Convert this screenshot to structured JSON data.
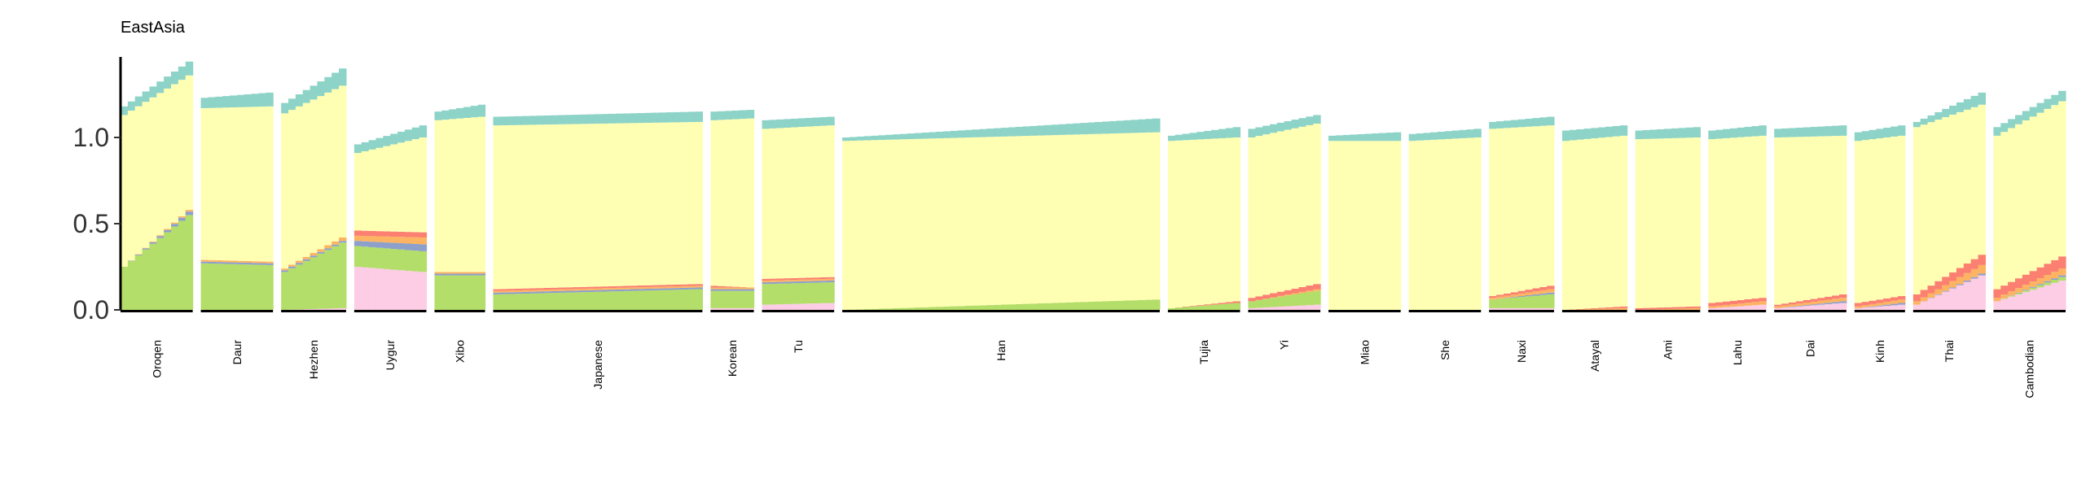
{
  "chart_data": {
    "type": "bar",
    "subtype": "stacked-admixture",
    "title": "EastAsia",
    "xlabel": "",
    "ylabel": "",
    "ylim": [
      0,
      1.5
    ],
    "yticks": [
      0.0,
      0.5,
      1.0
    ],
    "ytick_labels": [
      "0.0",
      "0.5",
      "1.0"
    ],
    "grid": false,
    "legend": "none",
    "components": [
      {
        "id": "c1",
        "color": "#fccde5"
      },
      {
        "id": "c2",
        "color": "#b3de69"
      },
      {
        "id": "c3",
        "color": "#8da0cb"
      },
      {
        "id": "c4",
        "color": "#fdb462"
      },
      {
        "id": "c5",
        "color": "#fb8072"
      },
      {
        "id": "c6",
        "color": "#ffffb3"
      },
      {
        "id": "c7",
        "color": "#8dd3c7"
      }
    ],
    "groups": [
      {
        "name": "Oroqen",
        "n": 10,
        "start": [
          0,
          0.25,
          0,
          0,
          0,
          0.88,
          0.05
        ],
        "end": [
          0,
          0.55,
          0.02,
          0.01,
          0,
          0.78,
          0.08
        ]
      },
      {
        "name": "Daur",
        "n": 10,
        "start": [
          0,
          0.27,
          0.01,
          0.01,
          0,
          0.88,
          0.06
        ],
        "end": [
          0,
          0.26,
          0.01,
          0.01,
          0,
          0.9,
          0.08
        ]
      },
      {
        "name": "Hezhen",
        "n": 9,
        "start": [
          0,
          0.22,
          0.01,
          0.01,
          0,
          0.9,
          0.06
        ],
        "end": [
          0.01,
          0.38,
          0.01,
          0.02,
          0,
          0.88,
          0.1
        ]
      },
      {
        "name": "Uygur",
        "n": 10,
        "start": [
          0.25,
          0.12,
          0.03,
          0.03,
          0.03,
          0.45,
          0.05
        ],
        "end": [
          0.22,
          0.12,
          0.04,
          0.04,
          0.03,
          0.55,
          0.07
        ]
      },
      {
        "name": "Xibo",
        "n": 7,
        "start": [
          0,
          0.2,
          0.01,
          0.01,
          0,
          0.88,
          0.05
        ],
        "end": [
          0,
          0.2,
          0.01,
          0.01,
          0,
          0.9,
          0.07
        ]
      },
      {
        "name": "Japanese",
        "n": 29,
        "start": [
          0,
          0.09,
          0.01,
          0.01,
          0.01,
          0.95,
          0.05
        ],
        "end": [
          0,
          0.12,
          0.01,
          0.01,
          0.01,
          0.94,
          0.06
        ]
      },
      {
        "name": "Korean",
        "n": 6,
        "start": [
          0.01,
          0.1,
          0.01,
          0.01,
          0.01,
          0.96,
          0.05
        ],
        "end": [
          0.01,
          0.1,
          0.01,
          0.01,
          0,
          0.98,
          0.05
        ]
      },
      {
        "name": "Tu",
        "n": 10,
        "start": [
          0.03,
          0.12,
          0.01,
          0.01,
          0.01,
          0.87,
          0.05
        ],
        "end": [
          0.04,
          0.12,
          0.01,
          0.01,
          0.01,
          0.88,
          0.05
        ]
      },
      {
        "name": "Han",
        "n": 44,
        "start": [
          0,
          0.0,
          0,
          0,
          0,
          0.98,
          0.02
        ],
        "end": [
          0,
          0.06,
          0,
          0,
          0,
          0.97,
          0.08
        ]
      },
      {
        "name": "Tujia",
        "n": 10,
        "start": [
          0,
          0.01,
          0,
          0,
          0,
          0.97,
          0.03
        ],
        "end": [
          0,
          0.04,
          0,
          0,
          0.01,
          0.95,
          0.06
        ]
      },
      {
        "name": "Yi",
        "n": 10,
        "start": [
          0.01,
          0.04,
          0,
          0,
          0.02,
          0.93,
          0.05
        ],
        "end": [
          0.03,
          0.08,
          0,
          0.01,
          0.03,
          0.93,
          0.05
        ]
      },
      {
        "name": "Miao",
        "n": 10,
        "start": [
          0,
          0,
          0,
          0,
          0,
          0.98,
          0.03
        ],
        "end": [
          0,
          0,
          0,
          0,
          0,
          0.98,
          0.05
        ]
      },
      {
        "name": "She",
        "n": 10,
        "start": [
          0,
          0,
          0,
          0,
          0,
          0.98,
          0.04
        ],
        "end": [
          0,
          0,
          0,
          0,
          0,
          1.0,
          0.05
        ]
      },
      {
        "name": "Naxi",
        "n": 9,
        "start": [
          0.01,
          0.05,
          0,
          0.01,
          0.01,
          0.97,
          0.04
        ],
        "end": [
          0.01,
          0.08,
          0.01,
          0.02,
          0.02,
          0.93,
          0.05
        ]
      },
      {
        "name": "Atayal",
        "n": 9,
        "start": [
          0,
          0,
          0,
          0,
          0,
          0.98,
          0.06
        ],
        "end": [
          0,
          0,
          0,
          0.01,
          0.01,
          0.99,
          0.06
        ]
      },
      {
        "name": "Ami",
        "n": 9,
        "start": [
          0,
          0,
          0,
          0,
          0.01,
          0.98,
          0.05
        ],
        "end": [
          0,
          0,
          0,
          0.01,
          0.01,
          0.98,
          0.06
        ]
      },
      {
        "name": "Lahu",
        "n": 8,
        "start": [
          0.01,
          0,
          0,
          0.01,
          0.02,
          0.95,
          0.05
        ],
        "end": [
          0.03,
          0,
          0,
          0.02,
          0.02,
          0.94,
          0.06
        ]
      },
      {
        "name": "Dai",
        "n": 10,
        "start": [
          0.01,
          0,
          0,
          0.01,
          0.01,
          0.97,
          0.05
        ],
        "end": [
          0.04,
          0,
          0.01,
          0.02,
          0.02,
          0.92,
          0.06
        ]
      },
      {
        "name": "Kinh",
        "n": 7,
        "start": [
          0.01,
          0,
          0,
          0.01,
          0.02,
          0.94,
          0.05
        ],
        "end": [
          0.03,
          0,
          0.01,
          0.02,
          0.02,
          0.93,
          0.06
        ]
      },
      {
        "name": "Thai",
        "n": 10,
        "start": [
          0.03,
          0,
          0,
          0.02,
          0.04,
          0.97,
          0.03
        ],
        "end": [
          0.2,
          0,
          0.01,
          0.05,
          0.06,
          0.87,
          0.07
        ]
      },
      {
        "name": "Cambodian",
        "n": 10,
        "start": [
          0.05,
          0,
          0,
          0.02,
          0.05,
          0.89,
          0.05
        ],
        "end": [
          0.17,
          0.02,
          0.01,
          0.04,
          0.07,
          0.9,
          0.06
        ]
      }
    ]
  }
}
